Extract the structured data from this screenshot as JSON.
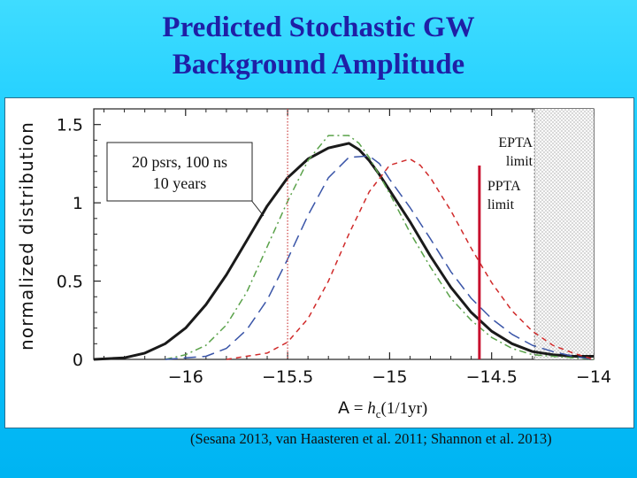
{
  "slide": {
    "title_line1": "Predicted Stochastic GW",
    "title_line2": "Background Amplitude",
    "citation": "(Sesana 2013, van Haasteren et al. 2011; Shannon et al. 2013)"
  },
  "chart_data": {
    "type": "line",
    "ylabel": "normalized distribution",
    "xlabel": "A = hc(1/1yr)",
    "xlabel_parts": {
      "a": "A",
      "eq": " = ",
      "h": "h",
      "sub": "c",
      "arg": "(1/1yr)"
    },
    "xlim": [
      -16.45,
      -14.0
    ],
    "ylim": [
      0,
      1.6
    ],
    "xticks": [
      -16,
      -15.5,
      -15,
      -14.5,
      -14
    ],
    "xtick_labels": [
      "−16",
      "−15.5",
      "−15",
      "−14.5",
      "−14"
    ],
    "yticks": [
      0,
      0.5,
      1,
      1.5
    ],
    "ytick_labels": [
      "0",
      "0.5",
      "1",
      "1.5"
    ],
    "series": [
      {
        "style": "solid",
        "color": "#1a1a1a",
        "x": [
          -16.45,
          -16.3,
          -16.2,
          -16.1,
          -16.0,
          -15.9,
          -15.8,
          -15.7,
          -15.6,
          -15.5,
          -15.4,
          -15.3,
          -15.2,
          -15.15,
          -15.1,
          -15.05,
          -15.0,
          -14.9,
          -14.8,
          -14.7,
          -14.6,
          -14.5,
          -14.4,
          -14.3,
          -14.2,
          -14.1,
          -14.0
        ],
        "y": [
          0,
          0.01,
          0.04,
          0.1,
          0.2,
          0.35,
          0.54,
          0.76,
          0.98,
          1.16,
          1.28,
          1.35,
          1.38,
          1.34,
          1.27,
          1.18,
          1.08,
          0.88,
          0.66,
          0.46,
          0.3,
          0.18,
          0.1,
          0.05,
          0.03,
          0.02,
          0.02
        ]
      },
      {
        "style": "dashdot",
        "color": "#5aa24a",
        "x": [
          -16.1,
          -16.0,
          -15.9,
          -15.8,
          -15.7,
          -15.6,
          -15.5,
          -15.4,
          -15.3,
          -15.2,
          -15.15,
          -15.1,
          -15.0,
          -14.9,
          -14.8,
          -14.7,
          -14.6,
          -14.5,
          -14.4,
          -14.3,
          -14.2,
          -14.1,
          -14.0
        ],
        "y": [
          0,
          0.03,
          0.09,
          0.22,
          0.43,
          0.72,
          1.01,
          1.27,
          1.43,
          1.43,
          1.38,
          1.29,
          1.06,
          0.81,
          0.59,
          0.39,
          0.25,
          0.14,
          0.07,
          0.03,
          0.02,
          0.01,
          0
        ]
      },
      {
        "style": "longdash",
        "color": "#3a55a8",
        "x": [
          -16.1,
          -15.9,
          -15.8,
          -15.7,
          -15.6,
          -15.5,
          -15.4,
          -15.3,
          -15.2,
          -15.1,
          -15.05,
          -15.0,
          -14.9,
          -14.8,
          -14.7,
          -14.6,
          -14.5,
          -14.4,
          -14.3,
          -14.2,
          -14.1,
          -14.0
        ],
        "y": [
          0,
          0.02,
          0.07,
          0.19,
          0.38,
          0.64,
          0.92,
          1.16,
          1.29,
          1.3,
          1.25,
          1.15,
          0.97,
          0.77,
          0.56,
          0.39,
          0.26,
          0.16,
          0.09,
          0.05,
          0.02,
          0
        ]
      },
      {
        "style": "shortdash",
        "color": "#d02a2a",
        "x": [
          -15.8,
          -15.6,
          -15.5,
          -15.4,
          -15.3,
          -15.2,
          -15.1,
          -15.0,
          -14.9,
          -14.85,
          -14.8,
          -14.7,
          -14.6,
          -14.5,
          -14.4,
          -14.3,
          -14.2,
          -14.1,
          -14.0
        ],
        "y": [
          0,
          0.04,
          0.11,
          0.26,
          0.5,
          0.8,
          1.07,
          1.24,
          1.28,
          1.24,
          1.16,
          0.95,
          0.71,
          0.49,
          0.31,
          0.18,
          0.09,
          0.04,
          0
        ]
      }
    ],
    "limits": [
      {
        "name": "PPTA",
        "value": -14.56,
        "color": "#c8102e",
        "label_lines": [
          "PPTA",
          "limit"
        ]
      },
      {
        "name": "EPTA",
        "value": -14.29,
        "label_lines": [
          "EPTA",
          "limit"
        ]
      }
    ],
    "target_marker": {
      "value": -15.5,
      "color": "#d05050"
    },
    "annotation": {
      "lines": [
        "20 psrs, 100 ns",
        "10 years"
      ]
    }
  }
}
